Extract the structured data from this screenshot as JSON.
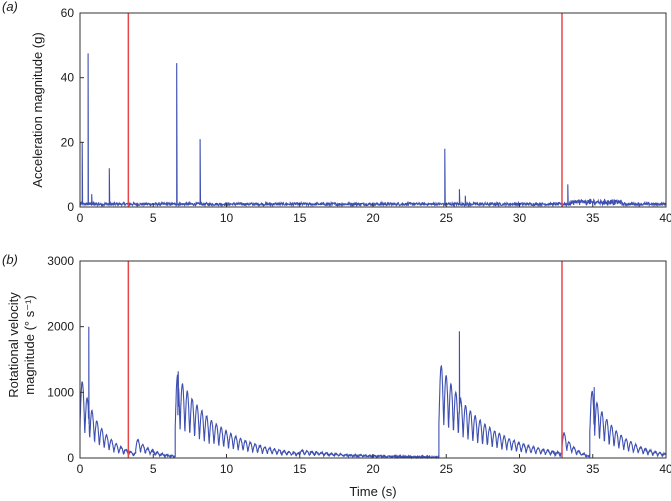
{
  "chart_data": [
    {
      "type": "line",
      "panel_label": "(a)",
      "ylabel": "Acceleration magnitude (g)",
      "xlabel": "",
      "xlim": [
        0,
        40
      ],
      "ylim": [
        0,
        60
      ],
      "x_ticks": [
        "0",
        "5",
        "10",
        "15",
        "20",
        "25",
        "30",
        "35",
        "40"
      ],
      "y_ticks": [
        "0",
        "20",
        "40",
        "60"
      ],
      "grid": false,
      "series_color": "#3d4fb0",
      "marker_color": "#e8474a",
      "markers_x": [
        3.3,
        32.9
      ],
      "baseline": 0.9,
      "spikes": [
        {
          "x": 0.15,
          "y": 20
        },
        {
          "x": 0.55,
          "y": 47.5
        },
        {
          "x": 0.8,
          "y": 4
        },
        {
          "x": 2.0,
          "y": 12
        },
        {
          "x": 6.6,
          "y": 44.5
        },
        {
          "x": 8.2,
          "y": 21
        },
        {
          "x": 24.9,
          "y": 18
        },
        {
          "x": 25.9,
          "y": 5.5
        },
        {
          "x": 26.3,
          "y": 3.5
        },
        {
          "x": 33.3,
          "y": 7
        },
        {
          "x": 34.8,
          "y": 2.5
        },
        {
          "x": 35.8,
          "y": 2.5
        },
        {
          "x": 36.5,
          "y": 2
        }
      ]
    },
    {
      "type": "line",
      "panel_label": "(b)",
      "ylabel": "Rotational velocity magnitude (° s⁻¹)",
      "ylabel_line1": "Rotational velocity",
      "ylabel_line2": "magnitude (° s⁻¹)",
      "xlabel": "Time (s)",
      "xlim": [
        0,
        40
      ],
      "ylim": [
        0,
        3000
      ],
      "x_ticks": [
        "0",
        "5",
        "10",
        "15",
        "20",
        "25",
        "30",
        "35",
        "40"
      ],
      "y_ticks": [
        "0",
        "1000",
        "2000",
        "3000"
      ],
      "grid": false,
      "series_color": "#3d4fb0",
      "marker_color": "#e8474a",
      "markers_x": [
        3.3,
        32.9
      ],
      "bursts": [
        {
          "x_start": 0.0,
          "x_end": 3.8,
          "peak": 1200,
          "decay_to": 200,
          "spike_x": 0.6,
          "spike_y": 2000
        },
        {
          "x_start": 3.8,
          "x_end": 6.5,
          "peak": 250,
          "decay_to": 120,
          "spike_x": null,
          "spike_y": null
        },
        {
          "x_start": 6.5,
          "x_end": 15.0,
          "peak": 1300,
          "decay_to": 60,
          "spike_x": 6.7,
          "spike_y": 1320
        },
        {
          "x_start": 15.0,
          "x_end": 24.5,
          "peak": 100,
          "decay_to": 20,
          "spike_x": null,
          "spike_y": null
        },
        {
          "x_start": 24.5,
          "x_end": 32.9,
          "peak": 1400,
          "decay_to": 150,
          "spike_x": 25.9,
          "spike_y": 1930
        },
        {
          "x_start": 32.9,
          "x_end": 34.8,
          "peak": 350,
          "decay_to": 200,
          "spike_x": null,
          "spike_y": null
        },
        {
          "x_start": 34.8,
          "x_end": 40.0,
          "peak": 1050,
          "decay_to": 100,
          "spike_x": 35.1,
          "spike_y": 1080
        }
      ]
    }
  ]
}
